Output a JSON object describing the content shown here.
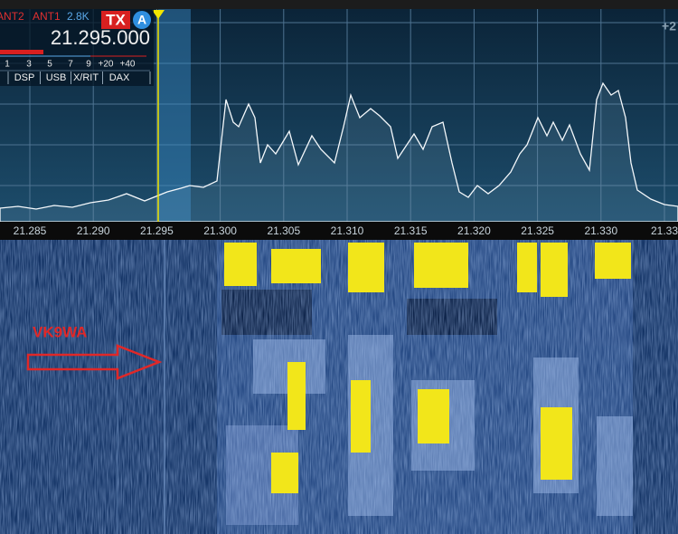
{
  "header": {
    "ant2": "ANT2",
    "ant1": "ANT1",
    "bandwidth": "2.8K",
    "tx": "TX",
    "slice": "A",
    "frequency": "21.295.000",
    "right_label": "+2"
  },
  "meter": {
    "scale": [
      "1",
      "3",
      "5",
      "7",
      "9",
      "+20",
      "+40"
    ]
  },
  "buttons": [
    "DSP",
    "USB",
    "X/RIT",
    "DAX"
  ],
  "frequency_axis": [
    "21.285",
    "21.290",
    "21.295",
    "21.300",
    "21.305",
    "21.310",
    "21.315",
    "21.320",
    "21.325",
    "21.330",
    "21.33"
  ],
  "annotation": "VK9WA"
}
